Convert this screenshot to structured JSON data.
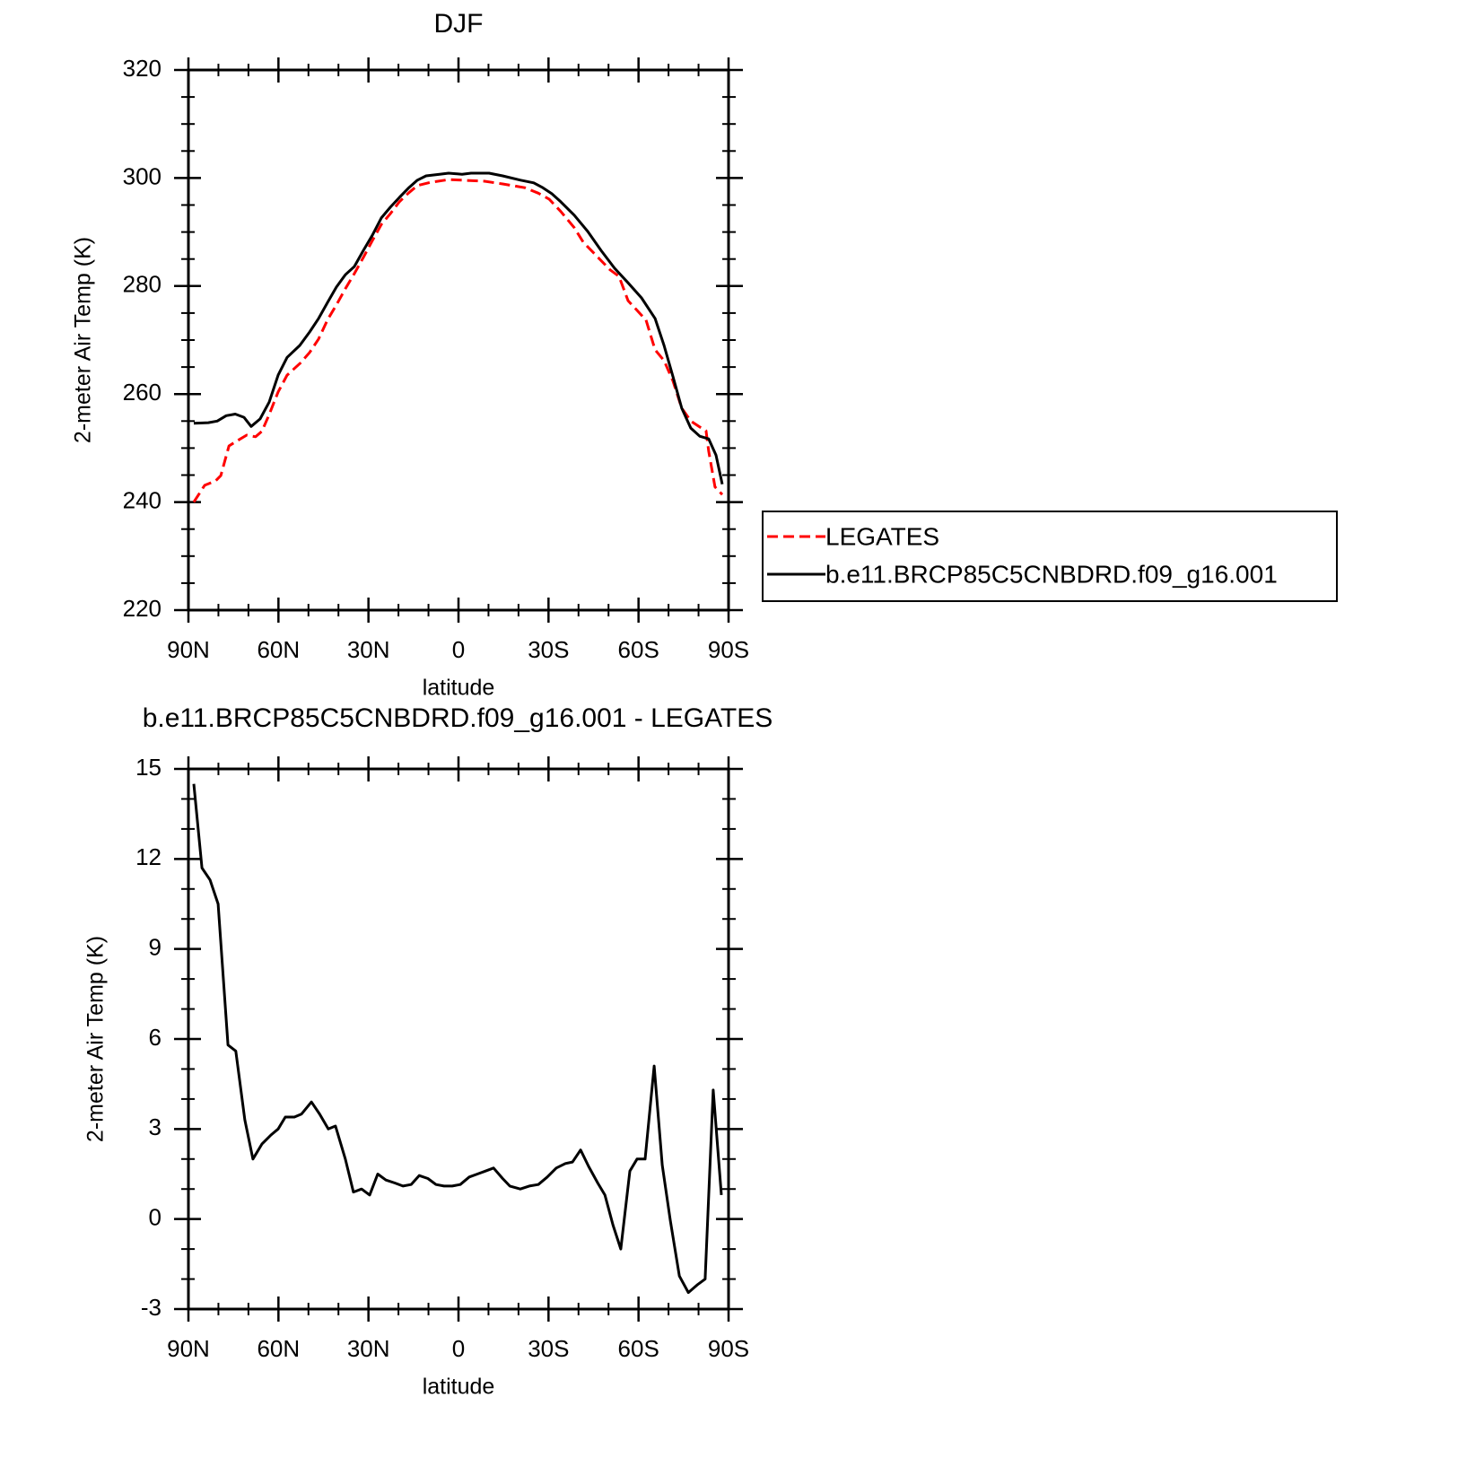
{
  "chart_data": [
    {
      "type": "line",
      "title": "DJF",
      "xlabel": "latitude",
      "ylabel": "2-meter Air Temp (K)",
      "xlim": [
        90,
        -90
      ],
      "ylim": [
        220,
        320
      ],
      "xticks": [
        {
          "value": 90,
          "label": "90N"
        },
        {
          "value": 60,
          "label": "60N"
        },
        {
          "value": 30,
          "label": "30N"
        },
        0,
        {
          "value": -30,
          "label": "30S"
        },
        {
          "value": -60,
          "label": "60S"
        },
        {
          "value": -90,
          "label": "90S"
        }
      ],
      "yticks": [
        220,
        240,
        260,
        280,
        300,
        320
      ],
      "series": [
        {
          "name": "LEGATES",
          "color": "#ff0000",
          "line_style": "dashed",
          "x": [
            88.2,
            84.6,
            81.0,
            79.2,
            76.5,
            73.6,
            70.6,
            67.6,
            65.5,
            63.1,
            60.1,
            57.1,
            52.6,
            49.6,
            46.6,
            43.6,
            40.7,
            37.7,
            34.7,
            31.7,
            28.7,
            25.7,
            22.7,
            19.7,
            16.7,
            13.7,
            9.3,
            3.3,
            -1.2,
            -8.7,
            -14.7,
            -22.1,
            -26.6,
            -30.2,
            -34.1,
            -38.6,
            -41.6,
            -46.0,
            -50.5,
            -53.5,
            -56.5,
            -59.5,
            -62.5,
            -65.5,
            -68.5,
            -71.5,
            -74.4,
            -77.4,
            -80.4,
            -82.5,
            -83.4,
            -85.5,
            -87.9
          ],
          "values": [
            240.0,
            243.1,
            243.9,
            244.9,
            250.4,
            251.4,
            252.4,
            252.1,
            253.1,
            256.2,
            260.4,
            263.5,
            265.8,
            267.7,
            270.2,
            273.8,
            276.5,
            279.5,
            282.3,
            285.3,
            288.4,
            291.4,
            293.4,
            295.6,
            297.2,
            298.6,
            299.2,
            299.7,
            299.6,
            299.4,
            298.9,
            298.2,
            297.2,
            296.1,
            293.8,
            290.8,
            288.1,
            285.6,
            283.0,
            281.8,
            277.3,
            275.5,
            273.7,
            268.2,
            266.2,
            262.4,
            257.4,
            255.0,
            253.9,
            253.2,
            249.4,
            242.8,
            241.4
          ]
        },
        {
          "name": "b.e11.BRCP85C5CNBDRD.f09_g16.001",
          "color": "#000000",
          "line_style": "solid",
          "x": [
            88.2,
            83.4,
            80.4,
            77.4,
            74.4,
            71.5,
            69.1,
            66.1,
            63.1,
            60.1,
            57.1,
            52.9,
            49.6,
            46.6,
            43.6,
            40.7,
            37.7,
            34.7,
            31.7,
            28.7,
            25.7,
            22.7,
            19.7,
            16.7,
            13.7,
            10.8,
            6.3,
            3.3,
            -1.2,
            -4.2,
            -10.2,
            -14.7,
            -20.7,
            -25.1,
            -28.1,
            -31.1,
            -34.1,
            -38.6,
            -43.1,
            -47.5,
            -52.0,
            -56.5,
            -61.0,
            -65.5,
            -68.5,
            -71.5,
            -74.4,
            -77.4,
            -80.4,
            -83.4,
            -85.8,
            -87.9
          ],
          "values": [
            254.6,
            254.7,
            255.0,
            256.0,
            256.3,
            255.7,
            254.0,
            255.4,
            258.5,
            263.5,
            266.8,
            269.0,
            271.5,
            274.0,
            277.0,
            279.8,
            282.1,
            283.6,
            286.6,
            289.4,
            292.6,
            294.6,
            296.4,
            298.1,
            299.6,
            300.4,
            300.7,
            300.9,
            300.7,
            300.9,
            300.9,
            300.4,
            299.6,
            299.1,
            298.2,
            297.1,
            295.6,
            293.1,
            290.1,
            286.6,
            283.3,
            280.6,
            277.8,
            274.0,
            269.0,
            263.2,
            257.4,
            253.7,
            252.2,
            251.7,
            248.7,
            243.3
          ]
        }
      ]
    },
    {
      "type": "line",
      "title": "b.e11.BRCP85C5CNBDRD.f09_g16.001 - LEGATES",
      "xlabel": "latitude",
      "ylabel": "2-meter Air Temp (K)",
      "xlim": [
        90,
        -90
      ],
      "ylim": [
        -3,
        15
      ],
      "xticks": [
        {
          "value": 90,
          "label": "90N"
        },
        {
          "value": 60,
          "label": "60N"
        },
        {
          "value": 30,
          "label": "30N"
        },
        0,
        {
          "value": -30,
          "label": "30S"
        },
        {
          "value": -60,
          "label": "60S"
        },
        {
          "value": -90,
          "label": "90S"
        }
      ],
      "yticks": [
        -3,
        0,
        3,
        6,
        9,
        12,
        15
      ],
      "color": "#000000",
      "x": [
        88.2,
        85.5,
        82.8,
        80.1,
        76.8,
        74.2,
        71.2,
        68.5,
        65.5,
        62.5,
        60.1,
        57.7,
        54.7,
        52.3,
        49.0,
        46.3,
        43.4,
        41.0,
        37.7,
        35.0,
        32.3,
        29.6,
        26.9,
        24.2,
        21.2,
        18.5,
        15.8,
        13.1,
        10.2,
        7.5,
        4.8,
        2.1,
        -0.6,
        -3.6,
        -6.3,
        -9.0,
        -11.7,
        -14.7,
        -17.1,
        -20.6,
        -23.6,
        -26.6,
        -29.6,
        -32.6,
        -35.6,
        -38.0,
        -40.7,
        -43.4,
        -46.4,
        -48.8,
        -51.5,
        -54.1,
        -57.1,
        -59.5,
        -62.2,
        -65.2,
        -67.9,
        -70.6,
        -73.6,
        -76.6,
        -79.5,
        -82.2,
        -84.9,
        -87.6
      ],
      "values": [
        14.5,
        11.7,
        11.3,
        10.5,
        5.8,
        5.6,
        3.3,
        2.0,
        2.5,
        2.8,
        3.0,
        3.4,
        3.4,
        3.5,
        3.9,
        3.5,
        3.0,
        3.1,
        2.0,
        0.9,
        1.0,
        0.8,
        1.5,
        1.3,
        1.2,
        1.1,
        1.15,
        1.45,
        1.35,
        1.15,
        1.1,
        1.1,
        1.15,
        1.4,
        1.5,
        1.6,
        1.7,
        1.35,
        1.1,
        1.0,
        1.1,
        1.15,
        1.4,
        1.7,
        1.85,
        1.9,
        2.3,
        1.75,
        1.2,
        0.8,
        -0.2,
        -1.0,
        1.6,
        2.0,
        2.0,
        5.1,
        1.8,
        -0.05,
        -1.9,
        -2.45,
        -2.2,
        -2.0,
        4.3,
        0.8
      ]
    }
  ]
}
